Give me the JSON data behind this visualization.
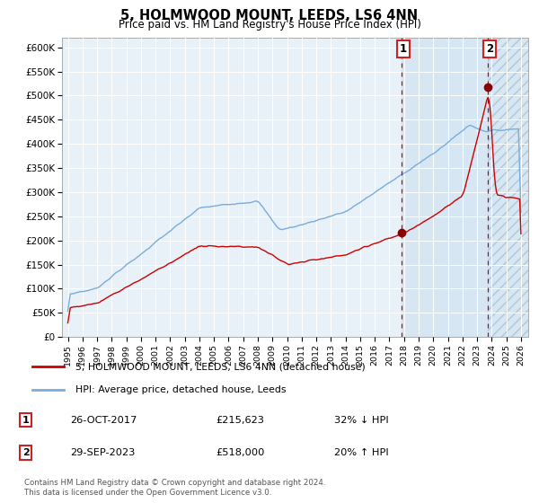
{
  "title": "5, HOLMWOOD MOUNT, LEEDS, LS6 4NN",
  "subtitle": "Price paid vs. HM Land Registry's House Price Index (HPI)",
  "ylim": [
    0,
    620000
  ],
  "yticks": [
    0,
    50000,
    100000,
    150000,
    200000,
    250000,
    300000,
    350000,
    400000,
    450000,
    500000,
    550000,
    600000
  ],
  "ytick_labels": [
    "£0",
    "£50K",
    "£100K",
    "£150K",
    "£200K",
    "£250K",
    "£300K",
    "£350K",
    "£400K",
    "£450K",
    "£500K",
    "£550K",
    "£600K"
  ],
  "hpi_color": "#7aadda",
  "property_color": "#cc0000",
  "marker_color": "#8b0000",
  "sale1_date": 2017.82,
  "sale1_value": 215623,
  "sale1_label": "1",
  "sale2_date": 2023.75,
  "sale2_value": 518000,
  "sale2_label": "2",
  "sale1_annotation": "26-OCT-2017",
  "sale1_price": "£215,623",
  "sale1_pct": "32% ↓ HPI",
  "sale2_annotation": "29-SEP-2023",
  "sale2_price": "£518,000",
  "sale2_pct": "20% ↑ HPI",
  "legend_property": "5, HOLMWOOD MOUNT, LEEDS, LS6 4NN (detached house)",
  "legend_hpi": "HPI: Average price, detached house, Leeds",
  "footnote": "Contains HM Land Registry data © Crown copyright and database right 2024.\nThis data is licensed under the Open Government Licence v3.0.",
  "chart_bg": "#e8f0f8",
  "shade_color": "#c8ddf0",
  "hatch_color": "#a0bbcc",
  "grid_color": "#ffffff",
  "fig_bg": "#ffffff"
}
